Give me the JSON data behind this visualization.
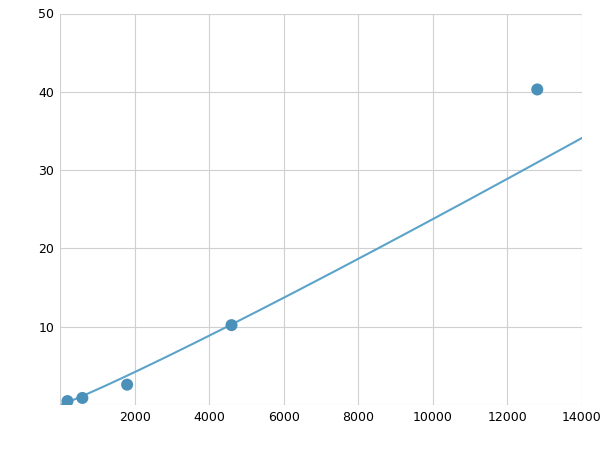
{
  "x_points": [
    200,
    600,
    1800,
    4600,
    12800
  ],
  "y_points": [
    0.5,
    0.9,
    2.6,
    10.2,
    40.3
  ],
  "line_color": "#5ba3c9",
  "marker_color": "#4a90b8",
  "marker_size": 5,
  "line_width": 1.5,
  "xlim": [
    0,
    14000
  ],
  "ylim": [
    0,
    50
  ],
  "xticks": [
    0,
    2000,
    4000,
    6000,
    8000,
    10000,
    12000,
    14000
  ],
  "yticks": [
    0,
    10,
    20,
    30,
    40,
    50
  ],
  "xtick_labels": [
    "",
    "2000",
    "4000",
    "6000",
    "8000",
    "10000",
    "12000",
    "14000"
  ],
  "ytick_labels": [
    "",
    "10",
    "20",
    "30",
    "40",
    "50"
  ],
  "grid_color": "#d0d0d0",
  "background_color": "#ffffff",
  "tick_fontsize": 9
}
